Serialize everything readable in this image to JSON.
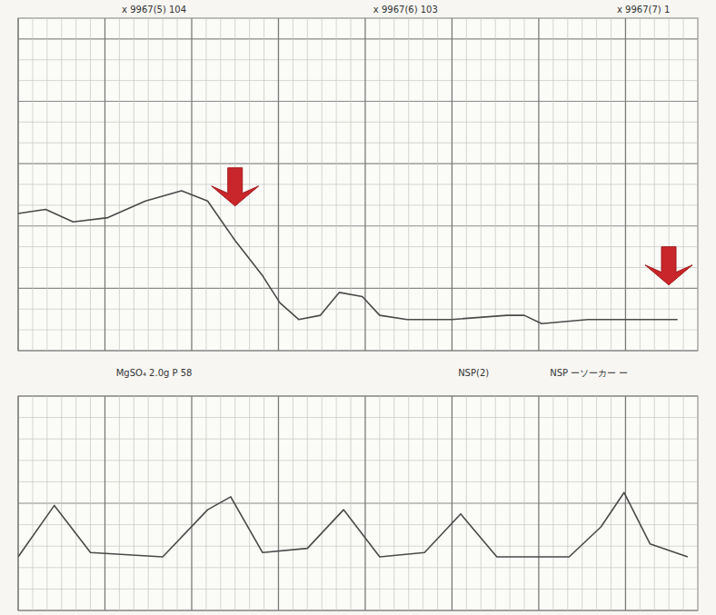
{
  "chart_data": [
    {
      "type": "line",
      "x": [
        0,
        19,
        38,
        62,
        88,
        113,
        131,
        150,
        169,
        181,
        194,
        209,
        222,
        238,
        250,
        269,
        300,
        338,
        350,
        362,
        394,
        425,
        456
      ],
      "series": [
        {
          "color": "#4a4a4a",
          "values": [
            116,
            118,
            112,
            114,
            122,
            127,
            122,
            103,
            86,
            73,
            65,
            67,
            78,
            76,
            67,
            65,
            65,
            67,
            67,
            63,
            65,
            65,
            65
          ]
        }
      ],
      "xlim": [
        0,
        470
      ],
      "xticks": [
        0,
        10,
        20,
        30,
        40,
        50,
        60,
        70,
        80,
        90,
        100,
        110,
        120,
        130,
        140,
        150,
        160,
        170,
        180,
        190,
        200,
        210,
        220,
        230,
        240,
        250,
        260,
        270,
        280,
        290,
        300,
        310,
        320,
        330,
        340,
        350,
        360,
        370,
        380,
        390,
        400,
        410,
        420,
        430,
        440,
        450,
        460,
        470
      ],
      "ylim": [
        50,
        210
      ],
      "yticks": [
        50,
        60,
        70,
        80,
        90,
        100,
        110,
        120,
        130,
        140,
        150,
        160,
        170,
        180,
        190,
        200,
        210
      ],
      "grid": true,
      "tick_labels": false,
      "annotations": [
        "x 9967(5) 104",
        "x 9967(6) 103",
        "x 9967(7) 1"
      ]
    },
    {
      "type": "line",
      "x": [
        0,
        25,
        50,
        100,
        131,
        147,
        169,
        200,
        225,
        250,
        281,
        306,
        331,
        381,
        403,
        419,
        437,
        463
      ],
      "series": [
        {
          "color": "#4a4a4a",
          "values": [
            25,
            49,
            27,
            25,
            47,
            53,
            27,
            29,
            47,
            25,
            27,
            45,
            25,
            25,
            39,
            55,
            31,
            25
          ]
        }
      ],
      "xlim": [
        0,
        470
      ],
      "xticks": [
        0,
        10,
        20,
        30,
        40,
        50,
        60,
        70,
        80,
        90,
        100,
        110,
        120,
        130,
        140,
        150,
        160,
        170,
        180,
        190,
        200,
        210,
        220,
        230,
        240,
        250,
        260,
        270,
        280,
        290,
        300,
        310,
        320,
        330,
        340,
        350,
        360,
        370,
        380,
        390,
        400,
        410,
        420,
        430,
        440,
        450,
        460,
        470
      ],
      "ylim": [
        0,
        100
      ],
      "yticks": [
        0,
        10,
        20,
        30,
        40,
        50,
        60,
        70,
        80,
        90,
        100
      ],
      "grid": true,
      "tick_labels": false,
      "annotations": [
        "MgSO₄ 2.0g P 58",
        "NSP(2)",
        "NSP ーソーカー ー"
      ]
    }
  ]
}
